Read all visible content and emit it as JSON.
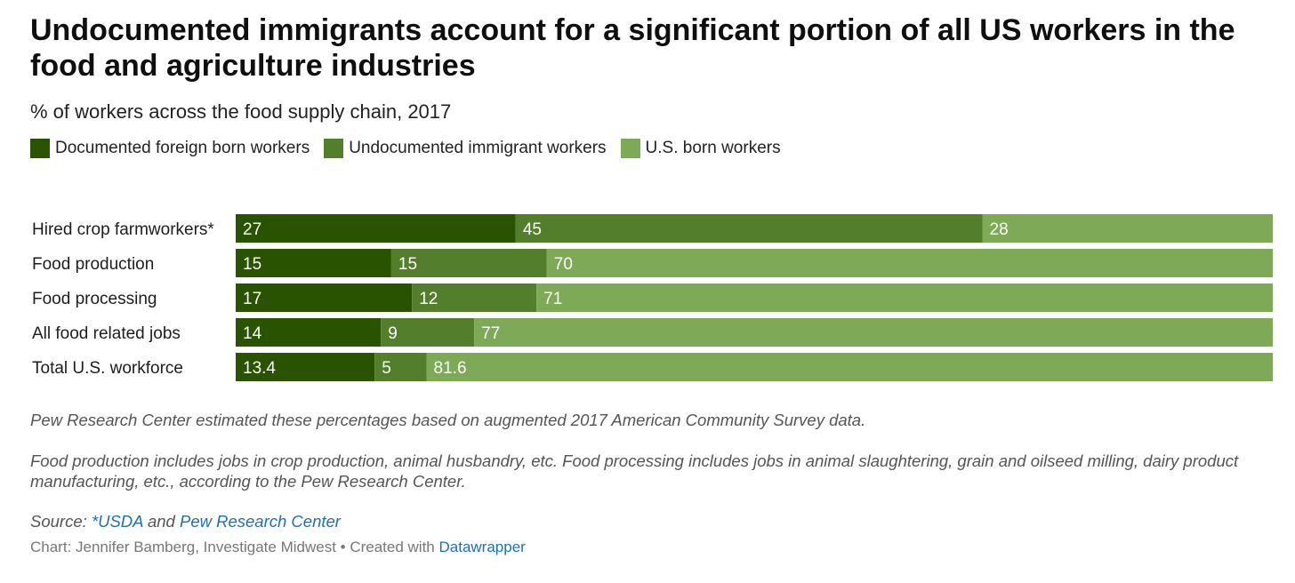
{
  "title": "Undocumented immigrants account for a significant portion of all US workers in the food and agriculture industries",
  "subtitle": "% of workers across the food supply chain, 2017",
  "colors": {
    "documented": "#2a5300",
    "undocumented": "#537f2c",
    "us_born": "#7ea956"
  },
  "chart_data": {
    "type": "bar",
    "orientation": "horizontal",
    "stacked": true,
    "categories": [
      "Hired crop farmworkers*",
      "Food production",
      "Food processing",
      "All food related jobs",
      "Total U.S. workforce"
    ],
    "series": [
      {
        "name": "Documented foreign born workers",
        "values": [
          27,
          15,
          17,
          14,
          13.4
        ]
      },
      {
        "name": "Undocumented immigrant workers",
        "values": [
          45,
          15,
          12,
          9,
          5
        ]
      },
      {
        "name": "U.S. born workers",
        "values": [
          28,
          70,
          71,
          77,
          81.6
        ]
      }
    ],
    "labels": [
      [
        "27",
        "15",
        "17",
        "14",
        "13.4"
      ],
      [
        "45",
        "15",
        "12",
        "9",
        "5"
      ],
      [
        "28",
        "70",
        "71",
        "77",
        "81.6"
      ]
    ],
    "xlim": [
      0,
      100
    ],
    "legend_position": "top"
  },
  "notes": {
    "line1": "Pew Research Center estimated these percentages based on augmented 2017 American Community Survey data.",
    "line2": "Food production includes jobs in crop production, animal husbandry, etc. Food processing includes jobs in animal slaughtering, grain and oilseed milling, dairy product manufacturing, etc., according to the Pew Research Center."
  },
  "source": {
    "prefix": "Source: ",
    "link1": "*USDA",
    "mid": " and ",
    "link2": "Pew Research Center"
  },
  "credit": {
    "text": "Chart: Jennifer Bamberg, Investigate Midwest • Created with ",
    "link": "Datawrapper"
  }
}
